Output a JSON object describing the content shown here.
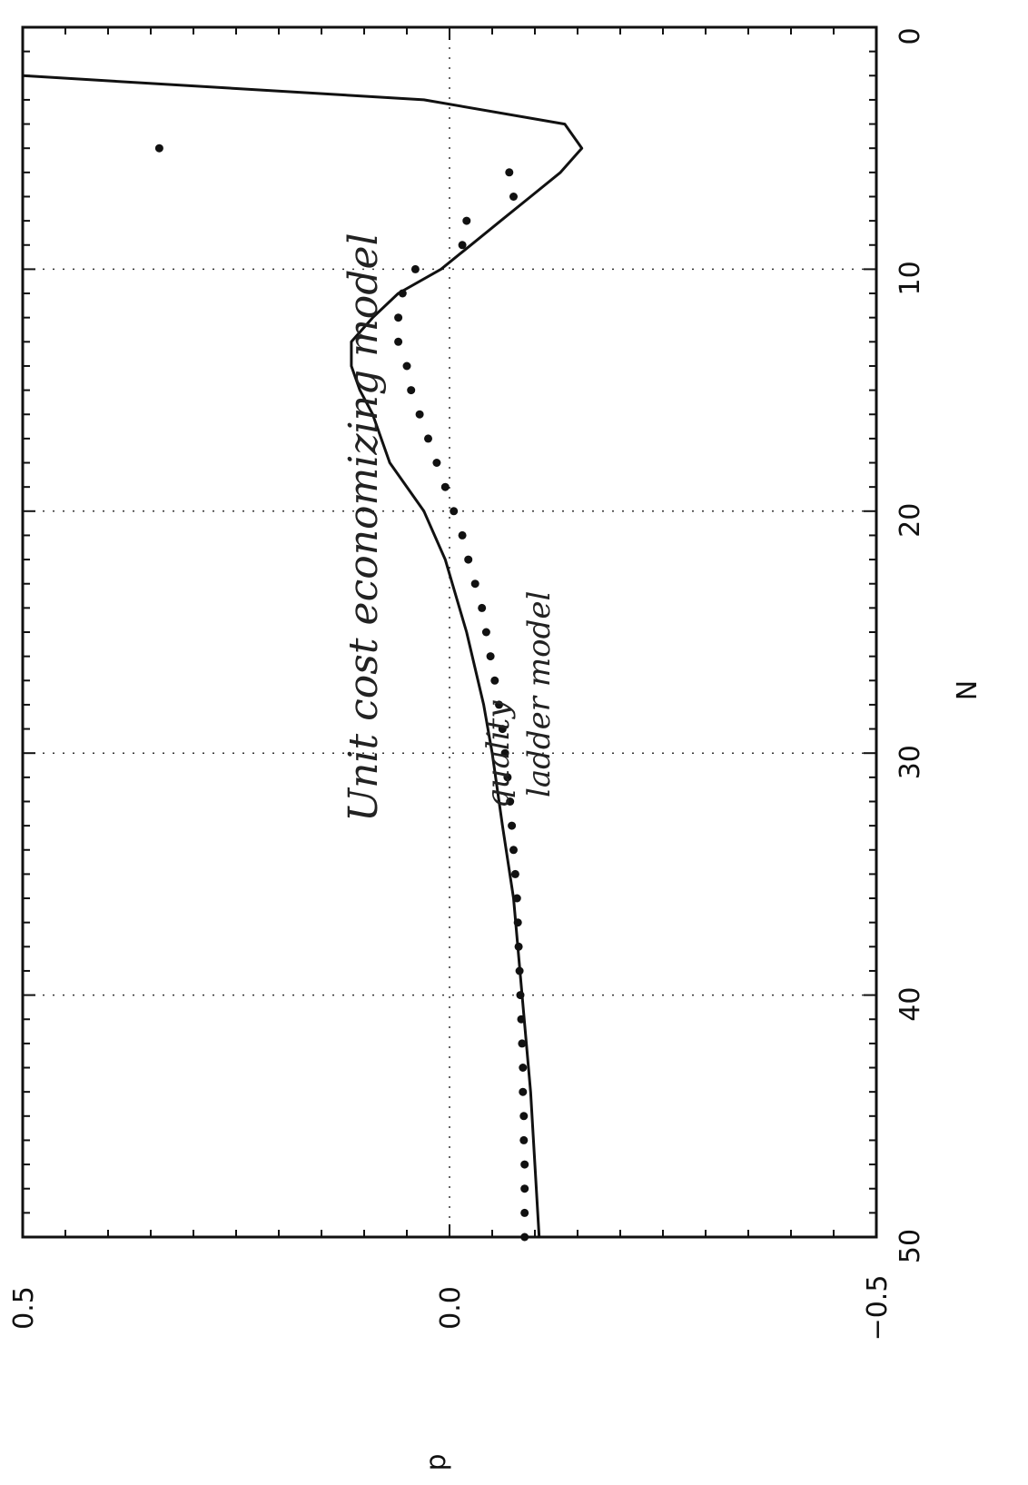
{
  "chart_data": {
    "type": "line",
    "xlabel": "N",
    "ylabel": "p",
    "xlim": [
      0,
      50
    ],
    "ylim": [
      -0.5,
      0.5
    ],
    "x_ticks": [
      0,
      10,
      20,
      30,
      40,
      50
    ],
    "y_ticks": [
      0.5,
      0.0,
      -0.5
    ],
    "x_tick_labels": [
      "0",
      "10",
      "20",
      "30",
      "40",
      "50"
    ],
    "y_tick_labels": [
      "0.5",
      "0.0",
      "−0.5"
    ],
    "grid": true,
    "orientation": "rotated 90 degrees counterclockwise (N increases downward on page, p increases to the left)",
    "series": [
      {
        "style": "solid line",
        "x": [
          2,
          3,
          4,
          5,
          6,
          7,
          8,
          9,
          10,
          11,
          12,
          13,
          14,
          15,
          16,
          18,
          20,
          22,
          25,
          28,
          30,
          33,
          36,
          40,
          44,
          47,
          50
        ],
        "y": [
          0.5,
          0.03,
          -0.135,
          -0.155,
          -0.13,
          -0.095,
          -0.06,
          -0.025,
          0.01,
          0.06,
          0.09,
          0.115,
          0.115,
          0.105,
          0.09,
          0.07,
          0.03,
          0.005,
          -0.02,
          -0.04,
          -0.05,
          -0.062,
          -0.075,
          -0.085,
          -0.095,
          -0.1,
          -0.105
        ]
      },
      {
        "style": "dots",
        "x": [
          5,
          6,
          7,
          8,
          9,
          10,
          11,
          12,
          13,
          14,
          15,
          16,
          17,
          18,
          19,
          20,
          21,
          22,
          23,
          24,
          25,
          26,
          27,
          28,
          29,
          30,
          31,
          32,
          33,
          34,
          35,
          36,
          37,
          38,
          39,
          40,
          41,
          42,
          43,
          44,
          45,
          46,
          47,
          48,
          49,
          50
        ],
        "y": [
          0.34,
          -0.07,
          -0.075,
          -0.02,
          -0.015,
          0.04,
          0.055,
          0.06,
          0.06,
          0.05,
          0.045,
          0.035,
          0.025,
          0.015,
          0.005,
          -0.005,
          -0.015,
          -0.022,
          -0.03,
          -0.038,
          -0.043,
          -0.048,
          -0.053,
          -0.058,
          -0.062,
          -0.065,
          -0.068,
          -0.071,
          -0.073,
          -0.075,
          -0.077,
          -0.079,
          -0.08,
          -0.081,
          -0.082,
          -0.083,
          -0.084,
          -0.085,
          -0.086,
          -0.086,
          -0.087,
          -0.087,
          -0.088,
          -0.088,
          -0.088,
          -0.088
        ]
      }
    ],
    "annotations": [
      {
        "text": "Unit cost economizing model"
      },
      {
        "text": "quality"
      },
      {
        "text": "ladder model"
      }
    ]
  }
}
